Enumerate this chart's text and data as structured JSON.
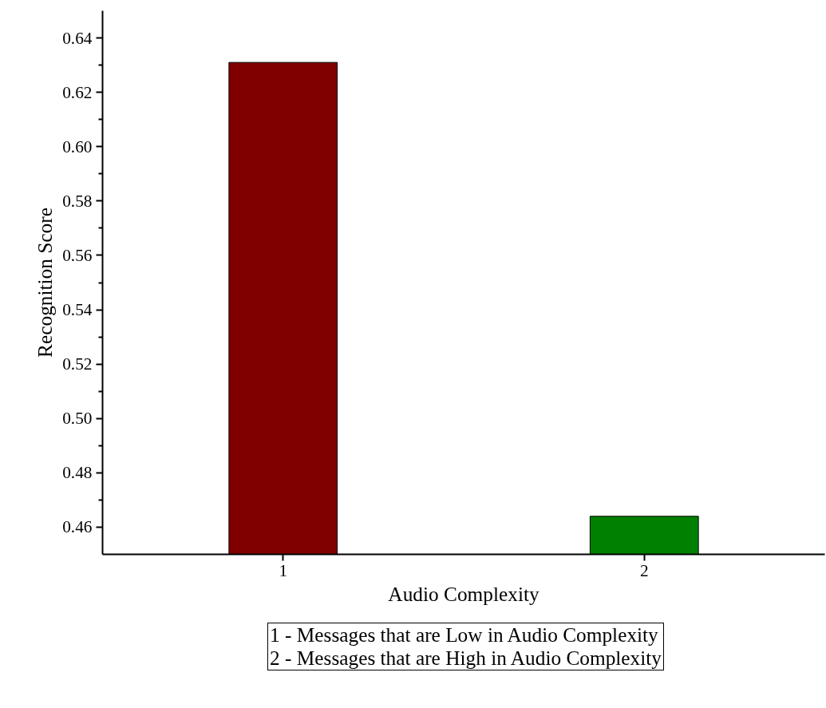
{
  "chart_data": {
    "type": "bar",
    "categories": [
      "1",
      "2"
    ],
    "values": [
      0.631,
      0.464
    ],
    "colors": [
      "#800000",
      "#008000"
    ],
    "xlabel": "Audio Complexity",
    "ylabel": "Recognition Score",
    "ylim": [
      0.45,
      0.65
    ],
    "yticks": [
      0.46,
      0.48,
      {
        "value": 0.5,
        "label": "0.50"
      },
      0.52,
      0.54,
      0.56,
      0.58,
      {
        "value": 0.6,
        "label": "0.60"
      },
      0.62,
      0.64
    ],
    "annotations": [
      "1 - Messages that are Low in Audio Complexity",
      "2 - Messages that are High in Audio Complexity"
    ],
    "grid": false
  }
}
